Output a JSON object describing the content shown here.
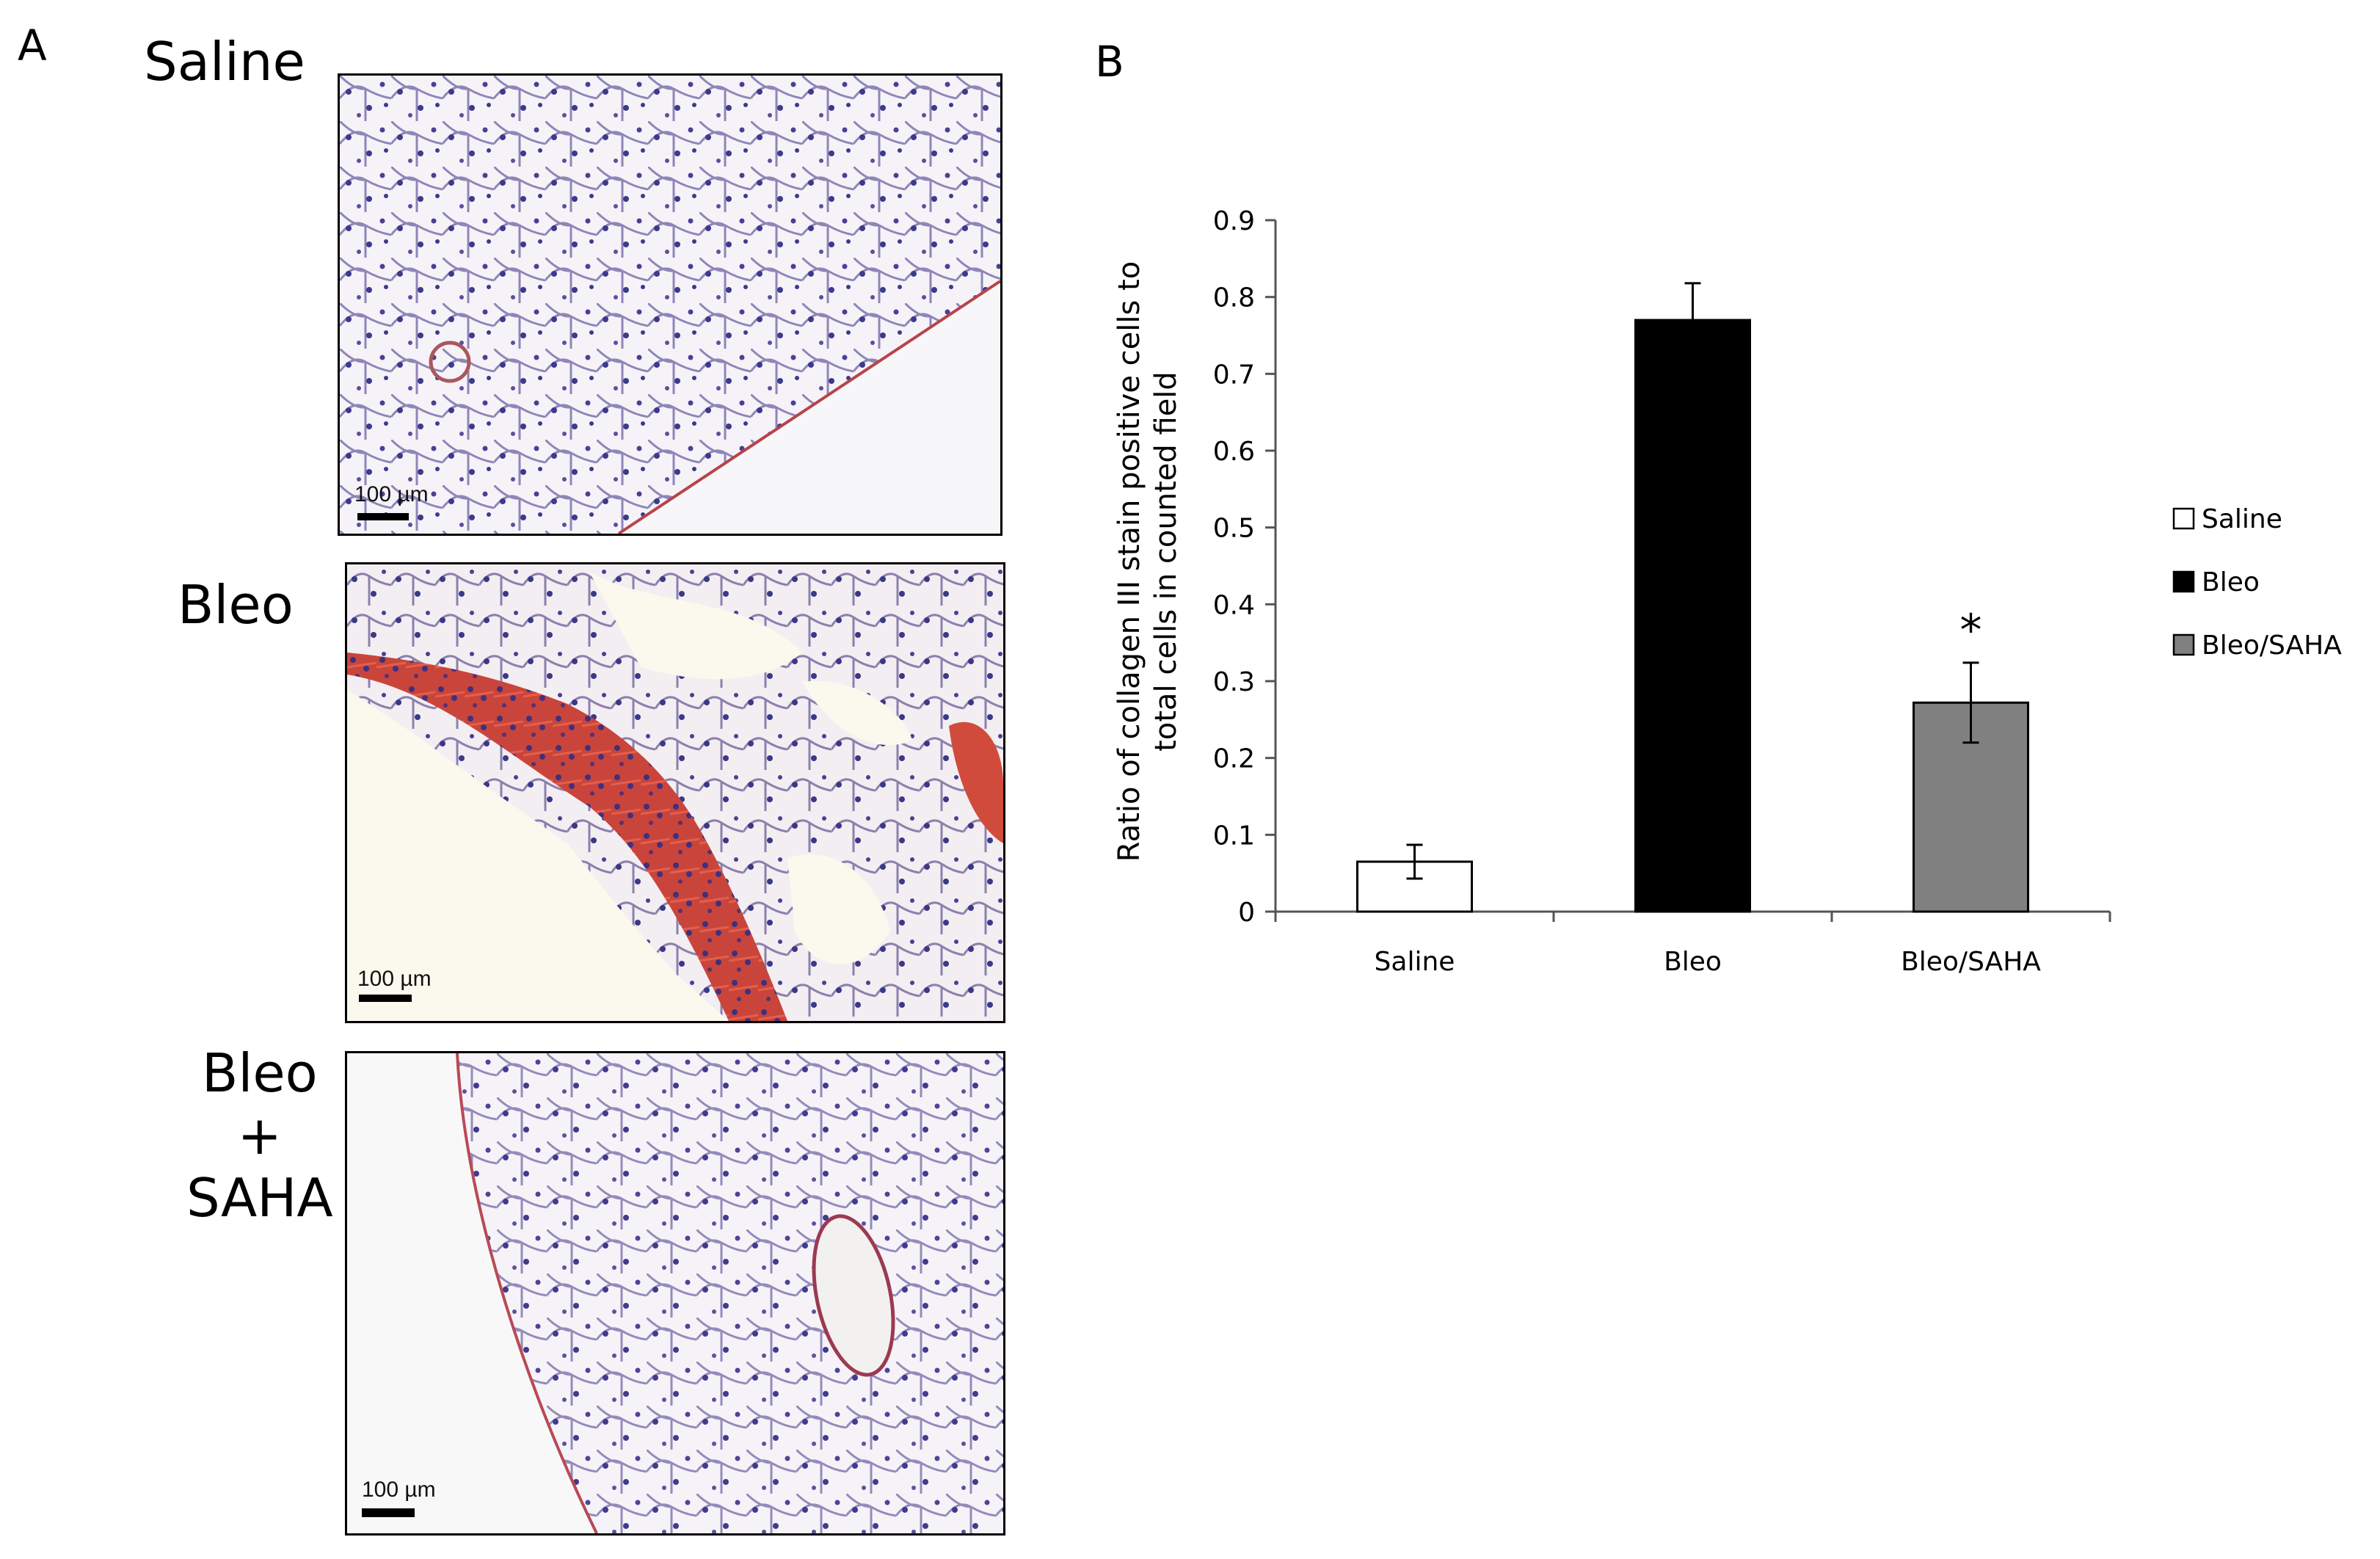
{
  "panels": {
    "a_letter": "A",
    "b_letter": "B"
  },
  "micrographs": [
    {
      "label_lines": [
        "Saline"
      ],
      "scale_bar": "100 µm",
      "stain_level": "low"
    },
    {
      "label_lines": [
        "Bleo"
      ],
      "scale_bar": "100 µm",
      "stain_level": "high"
    },
    {
      "label_lines": [
        "Bleo",
        "+",
        "SAHA"
      ],
      "scale_bar": "100 µm",
      "stain_level": "low"
    }
  ],
  "chart_data": {
    "type": "bar",
    "categories": [
      "Saline",
      "Bleo",
      "Bleo/SAHA"
    ],
    "values": [
      0.065,
      0.77,
      0.272
    ],
    "errors": [
      0.022,
      0.048,
      0.052
    ],
    "colors": [
      "#ffffff",
      "#000000",
      "#808080"
    ],
    "significance": [
      "",
      "",
      "*"
    ],
    "ylabel_lines": [
      "Ratio of collagen III stain positive cells  to",
      "total cells  in counted field"
    ],
    "xlabel": "",
    "ylim": [
      0,
      0.9
    ],
    "yticks": [
      "0",
      "0.1",
      "0.2",
      "0.3",
      "0.4",
      "0.5",
      "0.6",
      "0.7",
      "0.8",
      "0.9"
    ],
    "legend": {
      "position": "right",
      "entries": [
        {
          "label": "Saline",
          "color": "#ffffff"
        },
        {
          "label": "Bleo",
          "color": "#000000"
        },
        {
          "label": "Bleo/SAHA",
          "color": "#808080"
        }
      ]
    },
    "grid": false
  }
}
